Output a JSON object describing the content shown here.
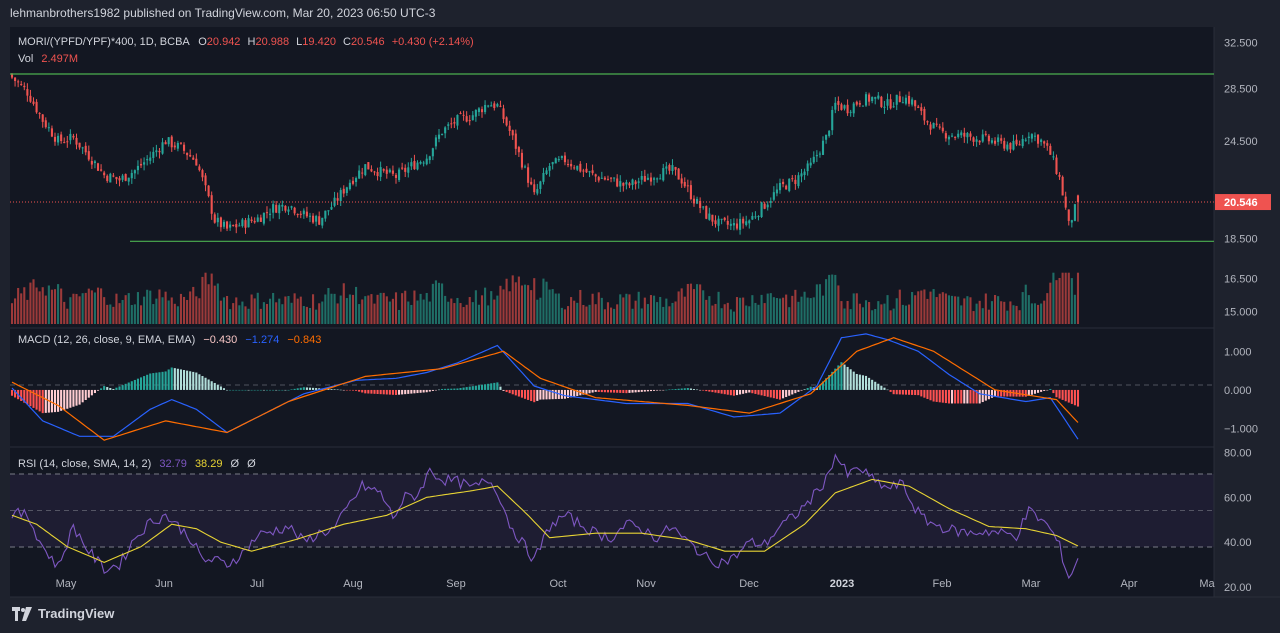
{
  "header": {
    "published": "lehmanbrothers1982 published on TradingView.com, Mar 20, 2023 06:50 UTC-3"
  },
  "legend": {
    "symbol": "MORI/(YPFD/YPF)*400, 1D, BCBA",
    "o_label": "O",
    "o": "20.942",
    "h_label": "H",
    "h": "20.988",
    "l_label": "L",
    "l": "19.420",
    "c_label": "C",
    "c": "20.546",
    "change": "+0.430 (+2.14%)",
    "vol_label": "Vol",
    "vol": "2.497M",
    "macd_title": "MACD (12, 26, close, 9, EMA, EMA)",
    "macd_hist": "−0.430",
    "macd_line": "−1.274",
    "macd_signal": "−0.843",
    "rsi_title": "RSI (14, close, SMA, 14, 2)",
    "rsi_value": "32.79",
    "rsi_ma": "38.29",
    "rsi_extra1": "Ø",
    "rsi_extra2": "Ø"
  },
  "footer": {
    "brand": "TradingView"
  },
  "colors": {
    "bg": "#1e222d",
    "up": "#26a69a",
    "down": "#ef5350",
    "vol_up": "#1f6e66",
    "vol_down": "#9c3a3a",
    "trend": "#4caf50",
    "macd": "#2962ff",
    "signal": "#ff6d00",
    "rsi": "#7e57c2",
    "rsi_ma": "#e8d434",
    "grid": "#2a2e39",
    "text": "#b2b5be"
  },
  "chart_data": {
    "type": "candlestick",
    "title": "MORI/(YPFD/YPF)*400, 1D, BCBA",
    "price_axis": {
      "ticks": [
        "32.500",
        "28.500",
        "24.500",
        "20.546",
        "18.500",
        "16.500",
        "15.000"
      ],
      "range": [
        14.3,
        34.0
      ],
      "last_price": "20.546"
    },
    "x_ticks": [
      "May",
      "Jun",
      "Jul",
      "Aug",
      "Sep",
      "Oct",
      "Nov",
      "Dec",
      "2023",
      "Feb",
      "Mar",
      "Apr",
      "Ma"
    ],
    "close_path": [
      [
        0,
        29.4
      ],
      [
        5,
        28.2
      ],
      [
        10,
        26.0
      ],
      [
        15,
        24.5
      ],
      [
        20,
        24.7
      ],
      [
        25,
        23.5
      ],
      [
        30,
        22.2
      ],
      [
        35,
        21.9
      ],
      [
        40,
        22.5
      ],
      [
        45,
        23.4
      ],
      [
        50,
        24.5
      ],
      [
        55,
        24.0
      ],
      [
        60,
        23.1
      ],
      [
        63,
        21.3
      ],
      [
        66,
        19.5
      ],
      [
        70,
        19.0
      ],
      [
        75,
        19.3
      ],
      [
        80,
        19.6
      ],
      [
        85,
        20.2
      ],
      [
        90,
        20.4
      ],
      [
        95,
        19.8
      ],
      [
        100,
        19.5
      ],
      [
        105,
        20.5
      ],
      [
        110,
        21.8
      ],
      [
        115,
        22.8
      ],
      [
        120,
        22.4
      ],
      [
        125,
        22.1
      ],
      [
        130,
        22.8
      ],
      [
        135,
        23.4
      ],
      [
        140,
        25.2
      ],
      [
        145,
        26.0
      ],
      [
        150,
        26.4
      ],
      [
        155,
        27.3
      ],
      [
        158,
        27.1
      ],
      [
        162,
        25.2
      ],
      [
        167,
        22.5
      ],
      [
        170,
        20.9
      ],
      [
        175,
        22.8
      ],
      [
        180,
        23.2
      ],
      [
        185,
        22.6
      ],
      [
        190,
        22.1
      ],
      [
        195,
        21.9
      ],
      [
        200,
        21.5
      ],
      [
        205,
        21.9
      ],
      [
        210,
        22.3
      ],
      [
        215,
        22.5
      ],
      [
        218,
        21.9
      ],
      [
        222,
        20.7
      ],
      [
        226,
        19.8
      ],
      [
        230,
        19.3
      ],
      [
        235,
        19.2
      ],
      [
        240,
        19.5
      ],
      [
        245,
        20.4
      ],
      [
        250,
        21.4
      ],
      [
        255,
        21.9
      ],
      [
        260,
        22.8
      ],
      [
        265,
        24.7
      ],
      [
        268,
        27.2
      ],
      [
        272,
        26.9
      ],
      [
        276,
        27.5
      ],
      [
        280,
        27.7
      ],
      [
        285,
        27.2
      ],
      [
        290,
        27.8
      ],
      [
        293,
        27.4
      ],
      [
        297,
        26.1
      ],
      [
        302,
        25.1
      ],
      [
        307,
        24.9
      ],
      [
        312,
        24.8
      ],
      [
        317,
        24.6
      ],
      [
        322,
        24.3
      ],
      [
        327,
        24.1
      ],
      [
        331,
        25.1
      ],
      [
        335,
        24.5
      ],
      [
        338,
        23.6
      ],
      [
        341,
        22.0
      ],
      [
        344,
        19.2
      ],
      [
        346,
        20.116
      ],
      [
        347,
        20.546
      ]
    ],
    "volume_range": "0 to 2.9M (panel scaled)",
    "trendlines": [
      {
        "name": "resistance",
        "price": 29.7
      },
      {
        "name": "support",
        "price": 18.35
      }
    ],
    "macd": {
      "axis_ticks": [
        "1.000",
        "0.000",
        "−1.000"
      ],
      "range": [
        -1.45,
        1.55
      ],
      "macd_path": [
        [
          0,
          0.05
        ],
        [
          10,
          -0.8
        ],
        [
          22,
          -1.2
        ],
        [
          33,
          -1.2
        ],
        [
          45,
          -0.5
        ],
        [
          52,
          -0.25
        ],
        [
          60,
          -0.5
        ],
        [
          70,
          -1.1
        ],
        [
          80,
          -0.7
        ],
        [
          95,
          -0.1
        ],
        [
          112,
          0.25
        ],
        [
          125,
          0.3
        ],
        [
          135,
          0.45
        ],
        [
          145,
          0.7
        ],
        [
          158,
          1.15
        ],
        [
          170,
          0.1
        ],
        [
          180,
          -0.15
        ],
        [
          200,
          -0.35
        ],
        [
          220,
          -0.35
        ],
        [
          235,
          -0.7
        ],
        [
          250,
          -0.6
        ],
        [
          262,
          0.1
        ],
        [
          270,
          1.35
        ],
        [
          278,
          1.45
        ],
        [
          285,
          1.3
        ],
        [
          295,
          1.0
        ],
        [
          305,
          0.4
        ],
        [
          315,
          -0.1
        ],
        [
          330,
          -0.3
        ],
        [
          338,
          -0.2
        ],
        [
          347,
          -1.274
        ]
      ],
      "signal_path": [
        [
          0,
          0.2
        ],
        [
          15,
          -0.4
        ],
        [
          30,
          -1.3
        ],
        [
          50,
          -0.8
        ],
        [
          70,
          -1.1
        ],
        [
          90,
          -0.3
        ],
        [
          115,
          0.35
        ],
        [
          140,
          0.55
        ],
        [
          160,
          1.0
        ],
        [
          172,
          0.3
        ],
        [
          190,
          -0.2
        ],
        [
          220,
          -0.4
        ],
        [
          240,
          -0.6
        ],
        [
          260,
          -0.1
        ],
        [
          275,
          1.0
        ],
        [
          287,
          1.35
        ],
        [
          300,
          1.0
        ],
        [
          320,
          0.0
        ],
        [
          340,
          -0.25
        ],
        [
          347,
          -0.843
        ]
      ],
      "last_hist": -0.43
    },
    "rsi": {
      "axis_ticks": [
        "80.00",
        "60.00",
        "40.00",
        "20.00"
      ],
      "range": [
        16,
        82
      ],
      "bands": [
        30,
        70
      ],
      "rsi_path": [
        [
          0,
          53
        ],
        [
          5,
          52
        ],
        [
          10,
          38
        ],
        [
          15,
          29
        ],
        [
          20,
          47
        ],
        [
          25,
          36
        ],
        [
          30,
          28
        ],
        [
          35,
          30
        ],
        [
          40,
          42
        ],
        [
          45,
          49
        ],
        [
          50,
          52
        ],
        [
          55,
          46
        ],
        [
          58,
          42
        ],
        [
          62,
          32
        ],
        [
          66,
          32
        ],
        [
          70,
          30
        ],
        [
          75,
          35
        ],
        [
          80,
          43
        ],
        [
          85,
          45
        ],
        [
          90,
          47
        ],
        [
          95,
          40
        ],
        [
          100,
          44
        ],
        [
          105,
          46
        ],
        [
          110,
          57
        ],
        [
          114,
          65
        ],
        [
          120,
          62
        ],
        [
          124,
          51
        ],
        [
          128,
          60
        ],
        [
          132,
          61
        ],
        [
          136,
          72
        ],
        [
          140,
          68
        ],
        [
          145,
          67
        ],
        [
          150,
          64
        ],
        [
          155,
          68
        ],
        [
          158,
          63
        ],
        [
          162,
          48
        ],
        [
          167,
          38
        ],
        [
          170,
          32
        ],
        [
          175,
          47
        ],
        [
          180,
          52
        ],
        [
          185,
          48
        ],
        [
          190,
          44
        ],
        [
          195,
          42
        ],
        [
          200,
          48
        ],
        [
          205,
          46
        ],
        [
          210,
          42
        ],
        [
          215,
          47
        ],
        [
          218,
          42
        ],
        [
          222,
          38
        ],
        [
          226,
          33
        ],
        [
          230,
          31
        ],
        [
          235,
          33
        ],
        [
          240,
          40
        ],
        [
          245,
          39
        ],
        [
          250,
          47
        ],
        [
          255,
          52
        ],
        [
          260,
          59
        ],
        [
          265,
          68
        ],
        [
          268,
          79
        ],
        [
          272,
          70
        ],
        [
          276,
          73
        ],
        [
          280,
          68
        ],
        [
          285,
          64
        ],
        [
          290,
          66
        ],
        [
          293,
          57
        ],
        [
          297,
          50
        ],
        [
          302,
          47
        ],
        [
          307,
          45
        ],
        [
          312,
          44
        ],
        [
          317,
          45
        ],
        [
          322,
          44
        ],
        [
          327,
          43
        ],
        [
          331,
          54
        ],
        [
          335,
          50
        ],
        [
          338,
          46
        ],
        [
          341,
          38
        ],
        [
          344,
          24
        ],
        [
          347,
          32.79
        ]
      ],
      "ma_path": [
        [
          0,
          52
        ],
        [
          8,
          48
        ],
        [
          18,
          38
        ],
        [
          30,
          31
        ],
        [
          42,
          38
        ],
        [
          52,
          48
        ],
        [
          60,
          46
        ],
        [
          68,
          40
        ],
        [
          78,
          36
        ],
        [
          92,
          41
        ],
        [
          108,
          48
        ],
        [
          122,
          52
        ],
        [
          135,
          60
        ],
        [
          150,
          63
        ],
        [
          158,
          65
        ],
        [
          168,
          52
        ],
        [
          175,
          42
        ],
        [
          190,
          44
        ],
        [
          205,
          44
        ],
        [
          220,
          41
        ],
        [
          232,
          36
        ],
        [
          245,
          36
        ],
        [
          258,
          48
        ],
        [
          268,
          62
        ],
        [
          280,
          68
        ],
        [
          292,
          65
        ],
        [
          305,
          55
        ],
        [
          318,
          47
        ],
        [
          330,
          46
        ],
        [
          340,
          43
        ],
        [
          347,
          38.29
        ]
      ]
    },
    "n_bars": 348
  }
}
